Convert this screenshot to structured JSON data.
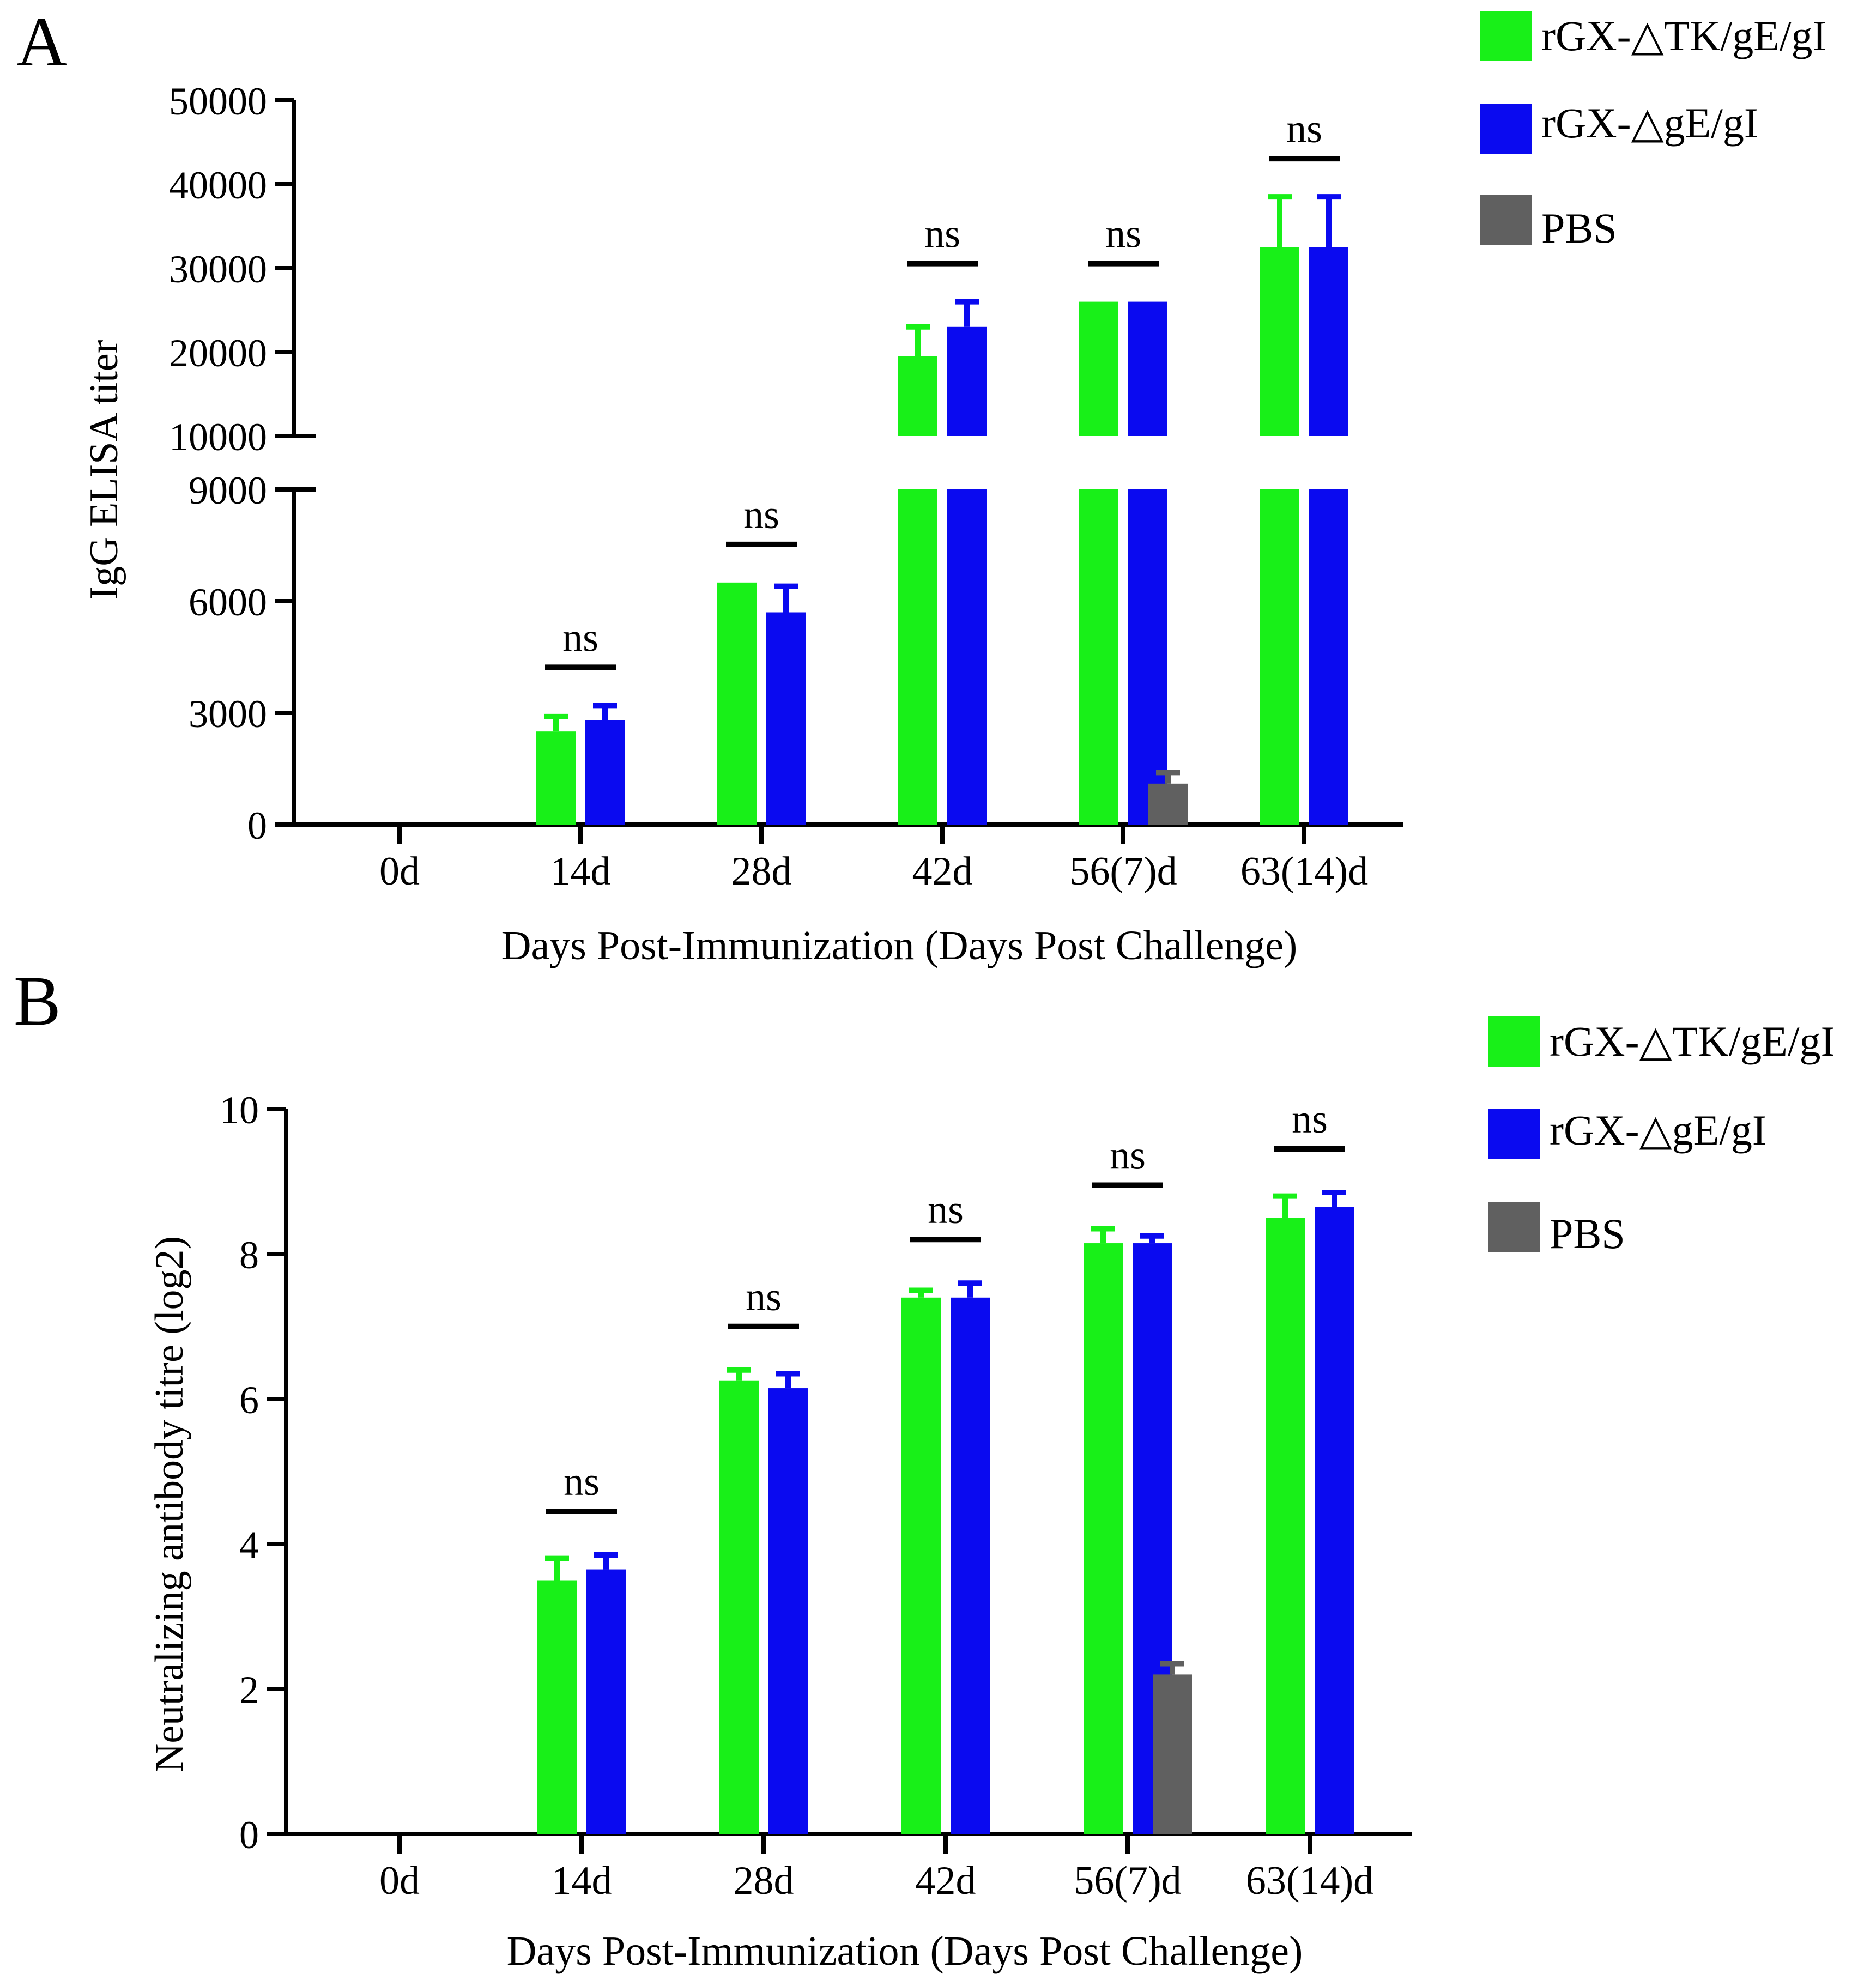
{
  "figure": {
    "panels": [
      {
        "letter": "A",
        "legend": [
          {
            "label": "rGX-△TK/gE/gI",
            "color": "#18f018"
          },
          {
            "label": "rGX-△gE/gI",
            "color": "#0a0af0"
          },
          {
            "label": "PBS",
            "color": "#606060"
          }
        ]
      },
      {
        "letter": "B",
        "legend": [
          {
            "label": "rGX-△TK/gE/gI",
            "color": "#18f018"
          },
          {
            "label": "rGX-△gE/gI",
            "color": "#0a0af0"
          },
          {
            "label": "PBS",
            "color": "#606060"
          }
        ]
      }
    ]
  },
  "chart_data": [
    {
      "type": "bar",
      "panel": "A",
      "ylabel": "IgG ELISA titer",
      "xlabel": "Days Post-Immunization (Days Post Challenge)",
      "categories": [
        "0d",
        "14d",
        "28d",
        "42d",
        "56(7)d",
        "63(14)d"
      ],
      "y_axis_break": {
        "lower_ticks": [
          "0",
          "3000",
          "6000",
          "9000"
        ],
        "upper_ticks": [
          "10000",
          "20000",
          "30000",
          "40000",
          "50000"
        ],
        "lower_range": [
          0,
          9000
        ],
        "upper_range": [
          10000,
          50000
        ]
      },
      "series": [
        {
          "name": "rGX-△TK/gE/gI",
          "color": "#18f018",
          "values": [
            null,
            2500,
            6500,
            19500,
            26000,
            32500
          ],
          "errors": [
            null,
            400,
            0,
            3500,
            0,
            6000
          ]
        },
        {
          "name": "rGX-△gE/gI",
          "color": "#0a0af0",
          "values": [
            null,
            2800,
            5700,
            23000,
            26000,
            32500
          ],
          "errors": [
            null,
            400,
            700,
            3000,
            0,
            6000
          ]
        },
        {
          "name": "PBS",
          "color": "#606060",
          "values": [
            null,
            null,
            null,
            null,
            1100,
            null
          ],
          "errors": [
            null,
            null,
            null,
            null,
            300,
            null
          ]
        }
      ],
      "significance": [
        {
          "category": "14d",
          "label": "ns"
        },
        {
          "category": "28d",
          "label": "ns"
        },
        {
          "category": "42d",
          "label": "ns"
        },
        {
          "category": "56(7)d",
          "label": "ns"
        },
        {
          "category": "63(14)d",
          "label": "ns"
        }
      ]
    },
    {
      "type": "bar",
      "panel": "B",
      "ylabel": "Neutralizing antibody titre (log2)",
      "xlabel": "Days Post-Immunization (Days Post Challenge)",
      "categories": [
        "0d",
        "14d",
        "28d",
        "42d",
        "56(7)d",
        "63(14)d"
      ],
      "ylim": [
        0,
        10
      ],
      "yticks": [
        "0",
        "2",
        "4",
        "6",
        "8",
        "10"
      ],
      "series": [
        {
          "name": "rGX-△TK/gE/gI",
          "color": "#18f018",
          "values": [
            null,
            3.5,
            6.25,
            7.4,
            8.15,
            8.5
          ],
          "errors": [
            null,
            0.3,
            0.15,
            0.1,
            0.2,
            0.3
          ]
        },
        {
          "name": "rGX-△gE/gI",
          "color": "#0a0af0",
          "values": [
            null,
            3.65,
            6.15,
            7.4,
            8.15,
            8.65
          ],
          "errors": [
            null,
            0.2,
            0.2,
            0.2,
            0.1,
            0.2
          ]
        },
        {
          "name": "PBS",
          "color": "#606060",
          "values": [
            null,
            null,
            null,
            null,
            2.2,
            null
          ],
          "errors": [
            null,
            null,
            null,
            null,
            0.15,
            null
          ]
        }
      ],
      "significance": [
        {
          "category": "14d",
          "label": "ns"
        },
        {
          "category": "28d",
          "label": "ns"
        },
        {
          "category": "42d",
          "label": "ns"
        },
        {
          "category": "56(7)d",
          "label": "ns"
        },
        {
          "category": "63(14)d",
          "label": "ns"
        }
      ]
    }
  ]
}
